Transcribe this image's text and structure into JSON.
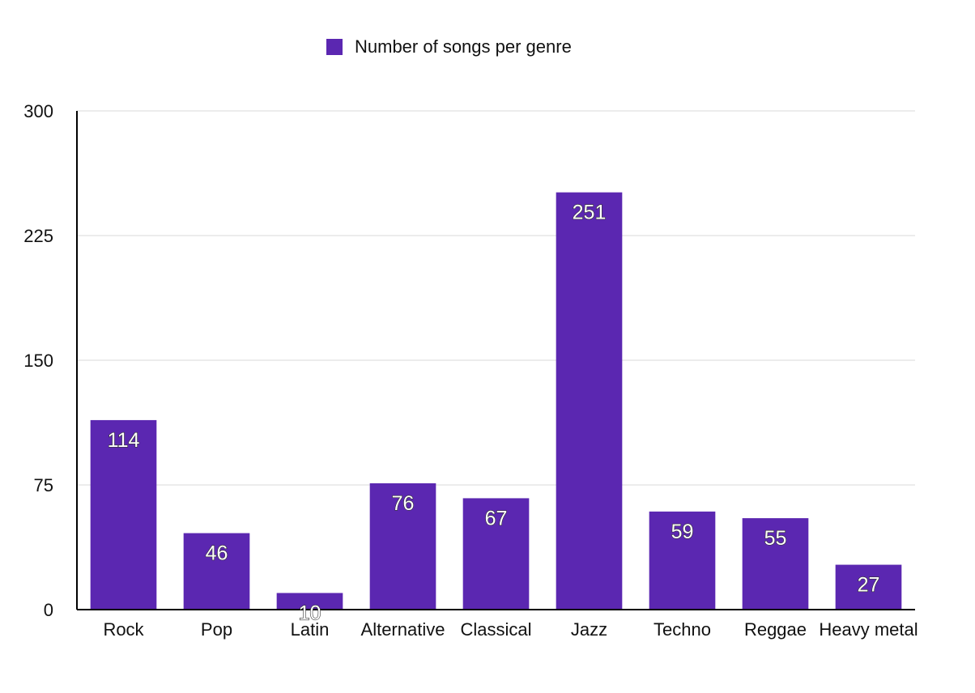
{
  "chart_data": {
    "type": "bar",
    "title": "",
    "xlabel": "",
    "ylabel": "",
    "ylim": [
      0,
      300
    ],
    "yticks": [
      0,
      75,
      150,
      225,
      300
    ],
    "categories": [
      "Rock",
      "Pop",
      "Latin",
      "Alternative",
      "Classical",
      "Jazz",
      "Techno",
      "Reggae",
      "Heavy metal"
    ],
    "series": [
      {
        "name": "Number of songs per genre",
        "values": [
          114,
          46,
          10,
          76,
          67,
          251,
          59,
          55,
          27
        ],
        "color": "#5b27b1"
      }
    ],
    "grid": true,
    "legend": "top-center",
    "data_labels": true
  }
}
